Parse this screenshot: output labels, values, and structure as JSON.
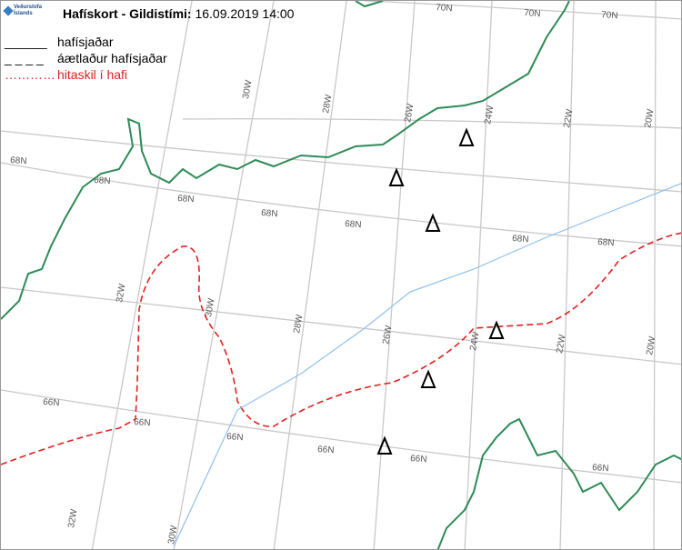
{
  "header": {
    "logo": [
      "Veðurstofa",
      "Íslands"
    ],
    "title": "Hafískort - Gildistími:",
    "time": "16.09.2019 14:00"
  },
  "legend": [
    {
      "symbol": "______",
      "label": "hafísjaðar"
    },
    {
      "symbol": "_ _ _ _",
      "label": "áætlaður hafísjaðar"
    },
    {
      "symbol": "…………",
      "label": "hitaskil í hafi"
    }
  ],
  "lat_labels": [
    "70N",
    "70N",
    "70N",
    "68N",
    "68N",
    "68N",
    "68N",
    "68N",
    "68N",
    "68N",
    "66N",
    "66N",
    "66N",
    "66N",
    "66N",
    "66N"
  ],
  "lon_labels": [
    "30W",
    "28W",
    "26W",
    "24W",
    "22W",
    "20W",
    "32W",
    "30W",
    "28W",
    "26W",
    "24W",
    "22W",
    "20W",
    "32W",
    "30W"
  ]
}
